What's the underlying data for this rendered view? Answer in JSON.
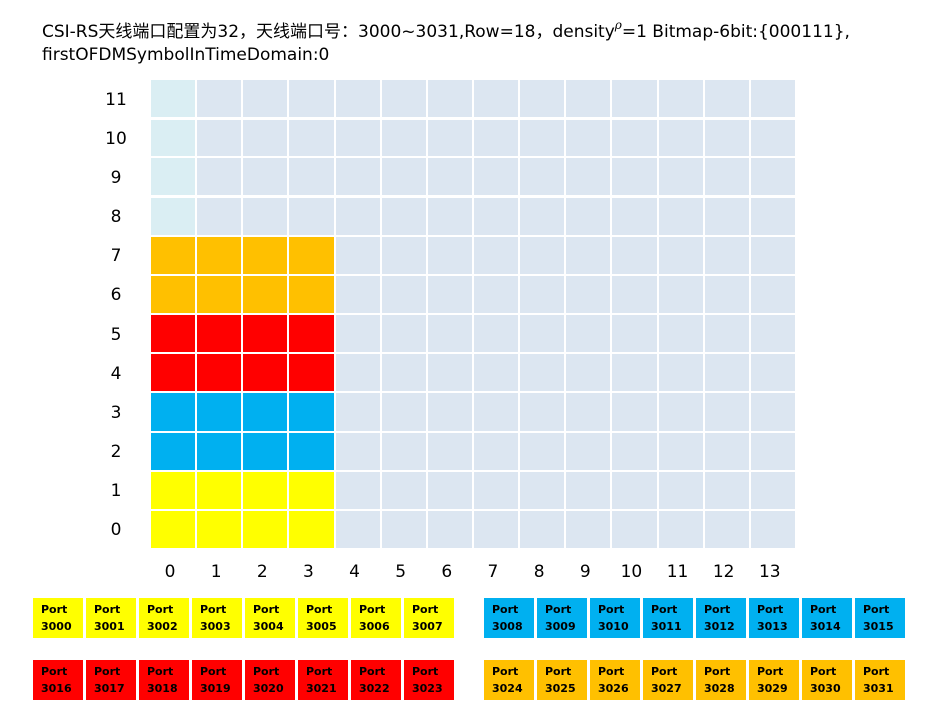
{
  "title": {
    "line1_prefix": "CSI-RS天线端口配置为32，天线端口号：3000~3031,Row=18，density",
    "rho": "ρ",
    "line1_suffix": "=1 Bitmap-6bit:{000111},",
    "line2": "firstOFDMSymbolInTimeDomain:0"
  },
  "colors": {
    "grid_default": "#dce6f1",
    "grid_light": "#daeef3",
    "yellow": "#ffff00",
    "blue": "#00b0f0",
    "red": "#ff0000",
    "orange": "#ffc000",
    "gridline": "#ffffff"
  },
  "grid": {
    "row_labels": [
      "11",
      "10",
      "9",
      "8",
      "7",
      "6",
      "5",
      "4",
      "3",
      "2",
      "1",
      "0"
    ],
    "col_labels": [
      "0",
      "1",
      "2",
      "3",
      "4",
      "5",
      "6",
      "7",
      "8",
      "9",
      "10",
      "11",
      "12",
      "13"
    ],
    "colored_rows": {
      "0": "yellow",
      "1": "yellow",
      "2": "blue",
      "3": "blue",
      "4": "red",
      "5": "red",
      "6": "orange",
      "7": "orange"
    },
    "colored_columns": 4,
    "light_rows": [
      "8",
      "9",
      "10",
      "11"
    ]
  },
  "legend": {
    "groups": [
      {
        "color": "yellow",
        "ports": [
          [
            "Port",
            "3000"
          ],
          [
            "Port",
            "3001"
          ],
          [
            "Port",
            "3002"
          ],
          [
            "Port",
            "3003"
          ],
          [
            "Port",
            "3004"
          ],
          [
            "Port",
            "3005"
          ],
          [
            "Port",
            "3006"
          ],
          [
            "Port",
            "3007"
          ]
        ]
      },
      {
        "color": "blue",
        "ports": [
          [
            "Port",
            "3008"
          ],
          [
            "Port",
            "3009"
          ],
          [
            "Port",
            "3010"
          ],
          [
            "Port",
            "3011"
          ],
          [
            "Port",
            "3012"
          ],
          [
            "Port",
            "3013"
          ],
          [
            "Port",
            "3014"
          ],
          [
            "Port",
            "3015"
          ]
        ]
      },
      {
        "color": "red",
        "ports": [
          [
            "Port",
            "3016"
          ],
          [
            "Port",
            "3017"
          ],
          [
            "Port",
            "3018"
          ],
          [
            "Port",
            "3019"
          ],
          [
            "Port",
            "3020"
          ],
          [
            "Port",
            "3021"
          ],
          [
            "Port",
            "3022"
          ],
          [
            "Port",
            "3023"
          ]
        ]
      },
      {
        "color": "orange",
        "ports": [
          [
            "Port",
            "3024"
          ],
          [
            "Port",
            "3025"
          ],
          [
            "Port",
            "3026"
          ],
          [
            "Port",
            "3027"
          ],
          [
            "Port",
            "3028"
          ],
          [
            "Port",
            "3029"
          ],
          [
            "Port",
            "3030"
          ],
          [
            "Port",
            "3031"
          ]
        ]
      }
    ]
  }
}
